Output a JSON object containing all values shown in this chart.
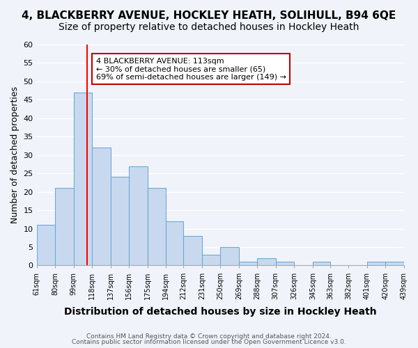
{
  "title": "4, BLACKBERRY AVENUE, HOCKLEY HEATH, SOLIHULL, B94 6QE",
  "subtitle": "Size of property relative to detached houses in Hockley Heath",
  "xlabel": "Distribution of detached houses by size in Hockley Heath",
  "ylabel": "Number of detached properties",
  "bin_edges": [
    61,
    80,
    99,
    118,
    137,
    156,
    175,
    194,
    212,
    231,
    250,
    269,
    288,
    307,
    326,
    345,
    363,
    382,
    401,
    420,
    439
  ],
  "bar_heights": [
    11,
    21,
    47,
    32,
    24,
    27,
    21,
    12,
    8,
    3,
    5,
    1,
    2,
    1,
    0,
    1,
    0,
    0,
    1,
    1
  ],
  "bar_color": "#c8d9ef",
  "bar_edge_color": "#6fa8d6",
  "vline_x": 113,
  "vline_color": "red",
  "ylim": [
    0,
    60
  ],
  "yticks": [
    0,
    5,
    10,
    15,
    20,
    25,
    30,
    35,
    40,
    45,
    50,
    55,
    60
  ],
  "annotation_title": "4 BLACKBERRY AVENUE: 113sqm",
  "annotation_line1": "← 30% of detached houses are smaller (65)",
  "annotation_line2": "69% of semi-detached houses are larger (149) →",
  "annotation_box_color": "#ffffff",
  "annotation_box_edge": "#c00000",
  "footer1": "Contains HM Land Registry data © Crown copyright and database right 2024.",
  "footer2": "Contains public sector information licensed under the Open Government Licence v3.0.",
  "bg_color": "#f0f4fa",
  "grid_color": "#ffffff",
  "title_fontsize": 11,
  "subtitle_fontsize": 10,
  "xlabel_fontsize": 10,
  "ylabel_fontsize": 9
}
